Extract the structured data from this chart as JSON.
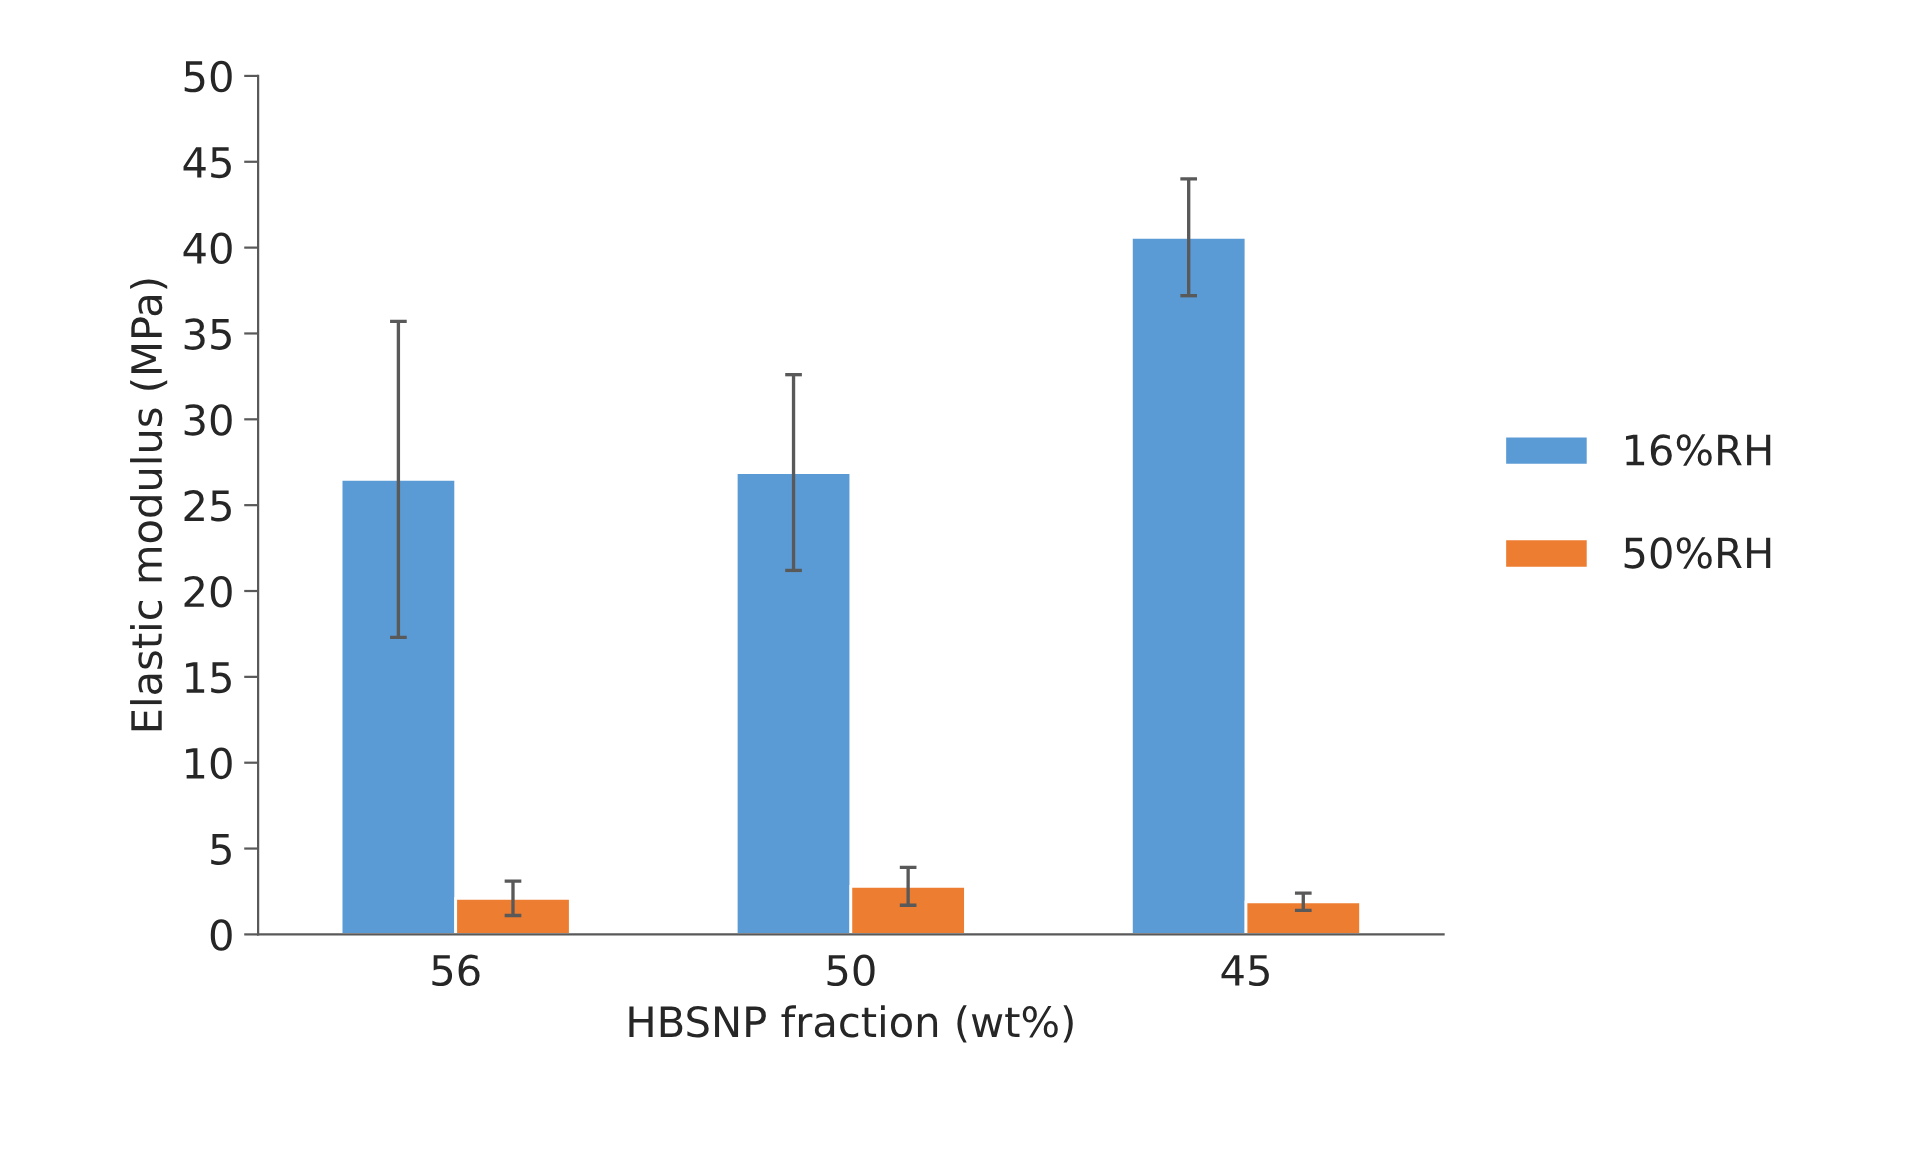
{
  "chart_data": {
    "type": "bar",
    "xlabel": "HBSNP fraction (wt%)",
    "ylabel": "Elastic modulus (MPa)",
    "categories": [
      "56",
      "50",
      "45"
    ],
    "series": [
      {
        "name": "16%RH",
        "color": "#5b9bd5",
        "values": [
          26.5,
          26.9,
          40.6
        ],
        "errors": [
          9.2,
          5.7,
          3.4
        ]
      },
      {
        "name": "50%RH",
        "color": "#ed7d31",
        "values": [
          2.1,
          2.8,
          1.9
        ],
        "errors": [
          1.0,
          1.1,
          0.5
        ]
      }
    ],
    "ylim": [
      0,
      50
    ],
    "yticks": [
      0,
      5,
      10,
      15,
      20,
      25,
      30,
      35,
      40,
      45,
      50
    ],
    "grid": false,
    "legend": "right"
  }
}
